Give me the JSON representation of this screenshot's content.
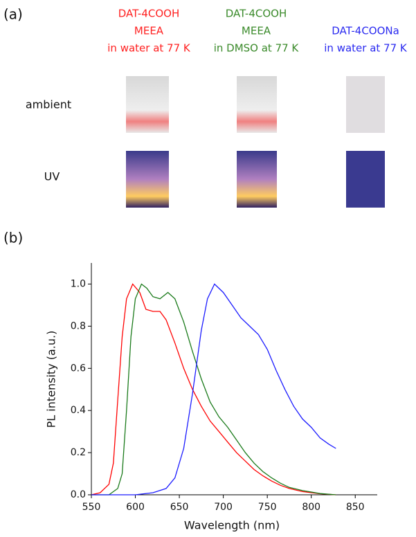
{
  "panel_a": {
    "label": "(a)",
    "columns": [
      {
        "lines": [
          "DAT-4COOH",
          "MEEA",
          "in water at 77 K"
        ],
        "color": "#ff2020"
      },
      {
        "lines": [
          "DAT-4COOH",
          "MEEA",
          "in DMSO at 77 K"
        ],
        "color": "#3a8a2a"
      },
      {
        "lines": [
          "DAT-4COONa",
          "in water at 77 K"
        ],
        "color": "#2a2af0"
      }
    ],
    "rows": [
      "ambient",
      "UV"
    ]
  },
  "chart_data": {
    "type": "line",
    "label": "(b)",
    "x_label": "Wavelength (nm)",
    "y_label": "PL intensity (a.u.)",
    "xlim": [
      550,
      875
    ],
    "xticks": [
      550,
      600,
      650,
      700,
      750,
      800,
      850
    ],
    "ylim": [
      0,
      1.1
    ],
    "yticks": [
      {
        "value": 0,
        "label": "0.0"
      },
      0.2,
      0.4,
      0.6,
      0.8,
      {
        "value": 1,
        "label": "1.0"
      }
    ],
    "series": [
      {
        "color": "#ff0000",
        "x": [
          550,
          560,
          570,
          575,
          580,
          585,
          590,
          597,
          605,
          612,
          620,
          628,
          635,
          645,
          655,
          665,
          675,
          685,
          695,
          705,
          715,
          725,
          735,
          745,
          755,
          765,
          775,
          790,
          810,
          828
        ],
        "values": [
          0,
          0.01,
          0.05,
          0.15,
          0.45,
          0.75,
          0.93,
          1,
          0.96,
          0.88,
          0.87,
          0.87,
          0.83,
          0.72,
          0.6,
          0.5,
          0.42,
          0.35,
          0.3,
          0.25,
          0.2,
          0.16,
          0.12,
          0.09,
          0.065,
          0.045,
          0.03,
          0.015,
          0.005,
          0
        ]
      },
      {
        "color": "#1a7a1a",
        "x": [
          550,
          570,
          580,
          585,
          590,
          595,
          600,
          607,
          613,
          620,
          628,
          637,
          645,
          655,
          665,
          675,
          685,
          695,
          705,
          715,
          725,
          735,
          745,
          755,
          765,
          775,
          790,
          810,
          828
        ],
        "values": [
          0,
          0,
          0.03,
          0.1,
          0.4,
          0.75,
          0.93,
          1,
          0.98,
          0.94,
          0.93,
          0.96,
          0.93,
          0.82,
          0.68,
          0.55,
          0.44,
          0.37,
          0.32,
          0.26,
          0.2,
          0.15,
          0.11,
          0.08,
          0.055,
          0.035,
          0.02,
          0.006,
          0
        ]
      },
      {
        "color": "#1a1aff",
        "x": [
          550,
          600,
          620,
          635,
          645,
          655,
          665,
          675,
          682,
          690,
          700,
          710,
          720,
          730,
          740,
          750,
          760,
          770,
          780,
          790,
          800,
          810,
          820,
          828
        ],
        "values": [
          0,
          0,
          0.01,
          0.03,
          0.08,
          0.22,
          0.48,
          0.78,
          0.93,
          1,
          0.96,
          0.9,
          0.84,
          0.8,
          0.76,
          0.69,
          0.59,
          0.5,
          0.42,
          0.36,
          0.32,
          0.27,
          0.24,
          0.22
        ]
      }
    ]
  }
}
